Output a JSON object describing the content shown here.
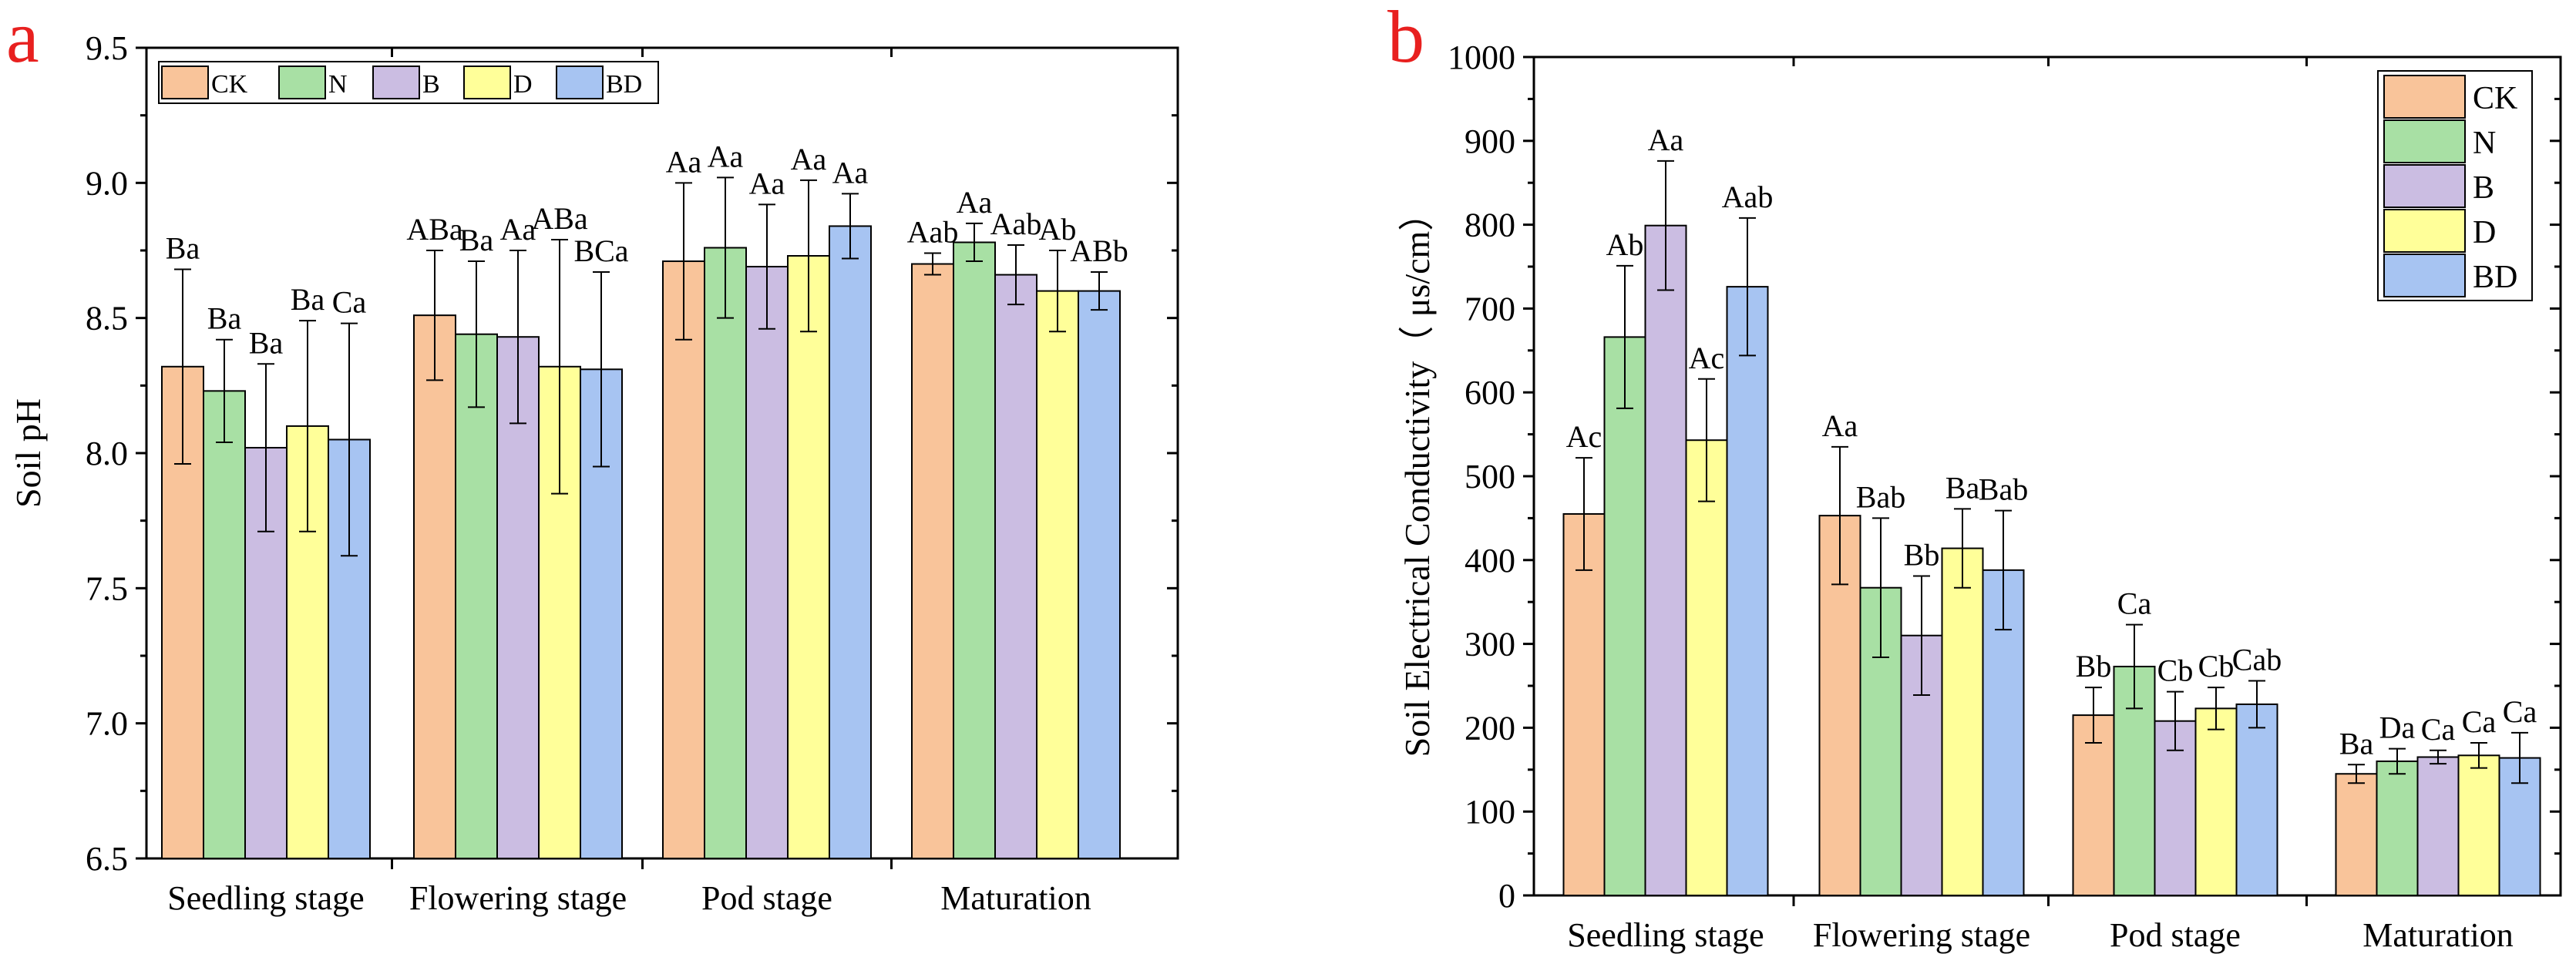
{
  "colors": {
    "CK": "#f9c49a",
    "N": "#a8e0a4",
    "B": "#cbbde2",
    "D": "#ffff99",
    "BD": "#a7c4f2",
    "panel_label": "#e8201f"
  },
  "chart_data": [
    {
      "type": "bar",
      "panel": "a",
      "title": "",
      "xlabel": "",
      "ylabel": "Soil pH",
      "ylim": [
        6.5,
        9.5
      ],
      "yticks": [
        "6.5",
        "7.0",
        "7.5",
        "8.0",
        "8.5",
        "9.0",
        "9.5"
      ],
      "categories": [
        "Seedling stage",
        "Flowering stage",
        "Pod stage",
        "Maturation"
      ],
      "legend_position": "top-left",
      "series": [
        {
          "name": "CK",
          "values": [
            8.32,
            8.51,
            8.71,
            8.7
          ],
          "errors": [
            0.36,
            0.24,
            0.29,
            0.04
          ],
          "labels": [
            "Ba",
            "ABa",
            "Aa",
            "Aab"
          ]
        },
        {
          "name": "N",
          "values": [
            8.23,
            8.44,
            8.76,
            8.78
          ],
          "errors": [
            0.19,
            0.27,
            0.26,
            0.07
          ],
          "labels": [
            "Ba",
            "Ba",
            "Aa",
            "Aa"
          ]
        },
        {
          "name": "B",
          "values": [
            8.02,
            8.43,
            8.69,
            8.66
          ],
          "errors": [
            0.31,
            0.32,
            0.23,
            0.11
          ],
          "labels": [
            "Ba",
            "Aa",
            "Aa",
            "Aab"
          ]
        },
        {
          "name": "D",
          "values": [
            8.1,
            8.32,
            8.73,
            8.6
          ],
          "errors": [
            0.39,
            0.47,
            0.28,
            0.15
          ],
          "labels": [
            "Ba",
            "ABa",
            "Aa",
            "Ab"
          ]
        },
        {
          "name": "BD",
          "values": [
            8.05,
            8.31,
            8.84,
            8.6
          ],
          "errors": [
            0.43,
            0.36,
            0.12,
            0.07
          ],
          "labels": [
            "Ca",
            "BCa",
            "Aa",
            "ABb"
          ]
        }
      ]
    },
    {
      "type": "bar",
      "panel": "b",
      "title": "",
      "xlabel": "",
      "ylabel": "Soil Electrical Conductivity（ μs/cm）",
      "ylim": [
        0,
        1000
      ],
      "yticks": [
        "0",
        "100",
        "200",
        "300",
        "400",
        "500",
        "600",
        "700",
        "800",
        "900",
        "1000"
      ],
      "categories": [
        "Seedling stage",
        "Flowering stage",
        "Pod stage",
        "Maturation"
      ],
      "legend_position": "top-right",
      "series": [
        {
          "name": "CK",
          "values": [
            455,
            453,
            215,
            145
          ],
          "errors": [
            67,
            82,
            33,
            11
          ],
          "labels": [
            "Ac",
            "Aa",
            "Bb",
            "Ba"
          ]
        },
        {
          "name": "N",
          "values": [
            666,
            367,
            273,
            160
          ],
          "errors": [
            85,
            83,
            50,
            15
          ],
          "labels": [
            "Ab",
            "Bab",
            "Ca",
            "Da"
          ]
        },
        {
          "name": "B",
          "values": [
            799,
            310,
            208,
            165
          ],
          "errors": [
            77,
            71,
            35,
            8
          ],
          "labels": [
            "Aa",
            "Bb",
            "Cb",
            "Ca"
          ]
        },
        {
          "name": "D",
          "values": [
            543,
            414,
            223,
            167
          ],
          "errors": [
            73,
            47,
            25,
            15
          ],
          "labels": [
            "Ac",
            "Ba",
            "Cb",
            "Ca"
          ]
        },
        {
          "name": "BD",
          "values": [
            726,
            388,
            228,
            164
          ],
          "errors": [
            82,
            71,
            28,
            30
          ],
          "labels": [
            "Aab",
            "Bab",
            "Cab",
            "Ca"
          ]
        }
      ]
    }
  ]
}
